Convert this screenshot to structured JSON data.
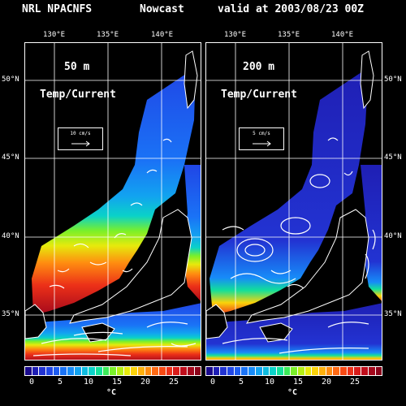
{
  "header": {
    "model": "NRL NPACNFS",
    "product": "Nowcast",
    "valid": "valid at 2003/08/23 00Z"
  },
  "axes": {
    "lon_ticks": [
      "130°E",
      "135°E",
      "140°E"
    ],
    "lat_ticks": [
      "50°N",
      "45°N",
      "40°N",
      "35°N"
    ]
  },
  "panels": [
    {
      "depth": "50 m",
      "field": "Temp/Current",
      "ref_vector": "10 cm/s"
    },
    {
      "depth": "200 m",
      "field": "Temp/Current",
      "ref_vector": "5 cm/s"
    }
  ],
  "colorbar": {
    "labels": [
      "0",
      "5",
      "10",
      "15",
      "20",
      "25"
    ],
    "unit": "°C",
    "colors": [
      "#1a0a8c",
      "#1f1fb4",
      "#2233d2",
      "#2046e6",
      "#1d5cf0",
      "#1a73f6",
      "#178bf8",
      "#12a3f0",
      "#0ebce0",
      "#0ad2c8",
      "#12e09a",
      "#3ceb5a",
      "#7af02a",
      "#b4f014",
      "#e6ea0c",
      "#fad20a",
      "#ffb00c",
      "#ff8c10",
      "#ff6a14",
      "#f84a14",
      "#ec3018",
      "#d81c1a",
      "#c00e1c",
      "#a4081c",
      "#8a041a"
    ]
  },
  "colors": {
    "background": "#000000",
    "land": "#000000",
    "text": "#ffffff"
  }
}
